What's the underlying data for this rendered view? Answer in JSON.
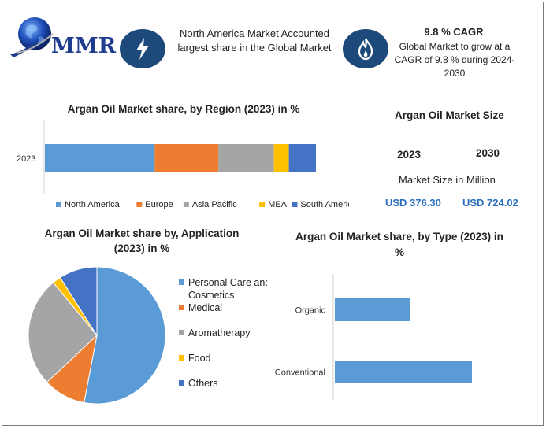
{
  "header": {
    "logo_text": "MMR",
    "box1_text": "North America Market Accounted largest share in the Global Market",
    "cagr_title": "9.8 % CAGR",
    "cagr_text": "Global Market to grow at a CAGR of 9.8 % during 2024-2030"
  },
  "market_size": {
    "title": "Argan Oil Market Size",
    "year1": "2023",
    "year2": "2030",
    "subtitle": "Market Size in Million",
    "value1": "USD 376.30",
    "value2": "USD 724.02"
  },
  "colors": {
    "north_america": "#5b9bd5",
    "europe": "#ed7d31",
    "asia_pacific": "#a5a5a5",
    "mea": "#ffc000",
    "south_america": "#4472c4",
    "icon_bg": "#1d4a7a"
  },
  "chart_data": [
    {
      "type": "bar",
      "orientation": "horizontal-stacked",
      "title": "Argan Oil Market share, by Region (2023) in %",
      "categories": [
        "2023"
      ],
      "series": [
        {
          "name": "North America",
          "values": [
            40.5
          ]
        },
        {
          "name": "Europe",
          "values": [
            23.5
          ]
        },
        {
          "name": "Asia Pacific",
          "values": [
            20.5
          ]
        },
        {
          "name": "MEA",
          "values": [
            5.5
          ]
        },
        {
          "name": "South America",
          "values": [
            10
          ]
        }
      ],
      "xlim": [
        0,
        100
      ],
      "legend": "bottom",
      "grid": false
    },
    {
      "type": "pie",
      "title": "Argan Oil Market share by, Application (2023) in %",
      "labels": [
        "Personal Care and Cosmetics",
        "Medical",
        "Aromatherapy",
        "Food",
        "Others"
      ],
      "label_lines": [
        [
          "Personal Care anc",
          "Cosmetics"
        ],
        [
          "Medical"
        ],
        [
          "Aromatherapy"
        ],
        [
          "Food"
        ],
        [
          "Others"
        ]
      ],
      "values": [
        53,
        10,
        26,
        2,
        9
      ],
      "legend": "right"
    },
    {
      "type": "bar",
      "orientation": "horizontal",
      "title": "Argan Oil Market share, by Type (2023) in %",
      "categories": [
        "Organic",
        "Conventional"
      ],
      "values": [
        55,
        100
      ],
      "grid": false
    }
  ]
}
